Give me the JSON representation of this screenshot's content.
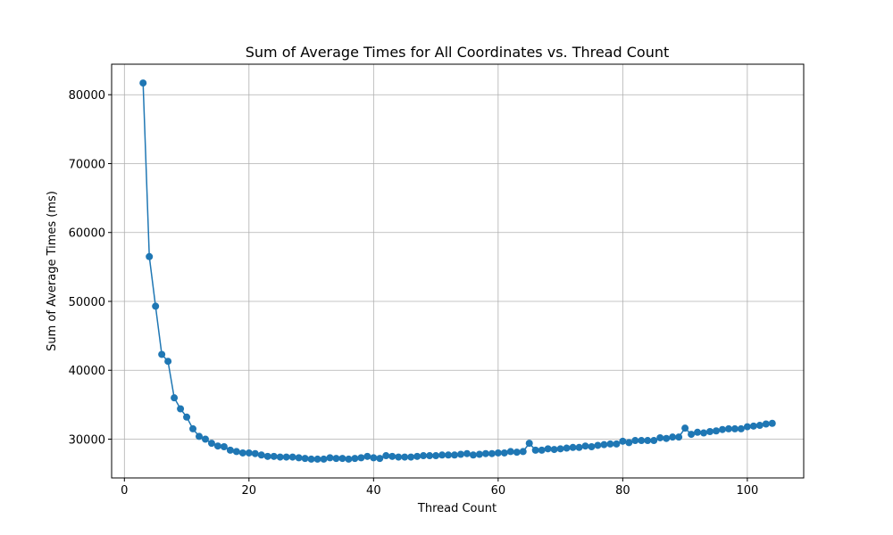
{
  "chart_data": {
    "type": "line",
    "title": "Sum of Average Times for All Coordinates vs. Thread Count",
    "xlabel": "Thread Count",
    "ylabel": "Sum of Average Times (ms)",
    "x": [
      3,
      4,
      5,
      6,
      7,
      8,
      9,
      10,
      11,
      12,
      13,
      14,
      15,
      16,
      17,
      18,
      19,
      20,
      21,
      22,
      23,
      24,
      25,
      26,
      27,
      28,
      29,
      30,
      31,
      32,
      33,
      34,
      35,
      36,
      37,
      38,
      39,
      40,
      41,
      42,
      43,
      44,
      45,
      46,
      47,
      48,
      49,
      50,
      51,
      52,
      53,
      54,
      55,
      56,
      57,
      58,
      59,
      60,
      61,
      62,
      63,
      64,
      65,
      66,
      67,
      68,
      69,
      70,
      71,
      72,
      73,
      74,
      75,
      76,
      77,
      78,
      79,
      80,
      81,
      82,
      83,
      84,
      85,
      86,
      87,
      88,
      89,
      90,
      91,
      92,
      93,
      94,
      95,
      96,
      97,
      98,
      99,
      100,
      101,
      102,
      103,
      104
    ],
    "series": [
      {
        "name": "Sum of Average Times",
        "color": "#1f77b4",
        "values": [
          81700,
          56500,
          49300,
          42300,
          41300,
          36000,
          34400,
          33200,
          31500,
          30400,
          30000,
          29400,
          29000,
          28900,
          28400,
          28200,
          28000,
          28000,
          27900,
          27700,
          27500,
          27500,
          27400,
          27400,
          27400,
          27300,
          27200,
          27100,
          27100,
          27100,
          27300,
          27200,
          27200,
          27100,
          27200,
          27300,
          27500,
          27300,
          27200,
          27600,
          27500,
          27400,
          27400,
          27400,
          27500,
          27600,
          27600,
          27600,
          27700,
          27700,
          27700,
          27800,
          27900,
          27700,
          27800,
          27900,
          27900,
          28000,
          28000,
          28200,
          28100,
          28200,
          29400,
          28400,
          28400,
          28600,
          28500,
          28600,
          28700,
          28800,
          28800,
          29000,
          28900,
          29100,
          29200,
          29300,
          29300,
          29700,
          29500,
          29800,
          29800,
          29800,
          29800,
          30200,
          30100,
          30300,
          30300,
          31600,
          30700,
          31000,
          30900,
          31100,
          31200,
          31400,
          31500,
          31500,
          31500,
          31800,
          31900,
          32000,
          32200,
          32300
        ]
      }
    ],
    "xlim": [
      -2.05,
      109.05
    ],
    "xticks": [
      0,
      20,
      40,
      60,
      80,
      100
    ],
    "ylim": [
      24370,
      84430
    ],
    "yticks": [
      30000,
      40000,
      50000,
      60000,
      70000,
      80000
    ],
    "grid": true
  }
}
